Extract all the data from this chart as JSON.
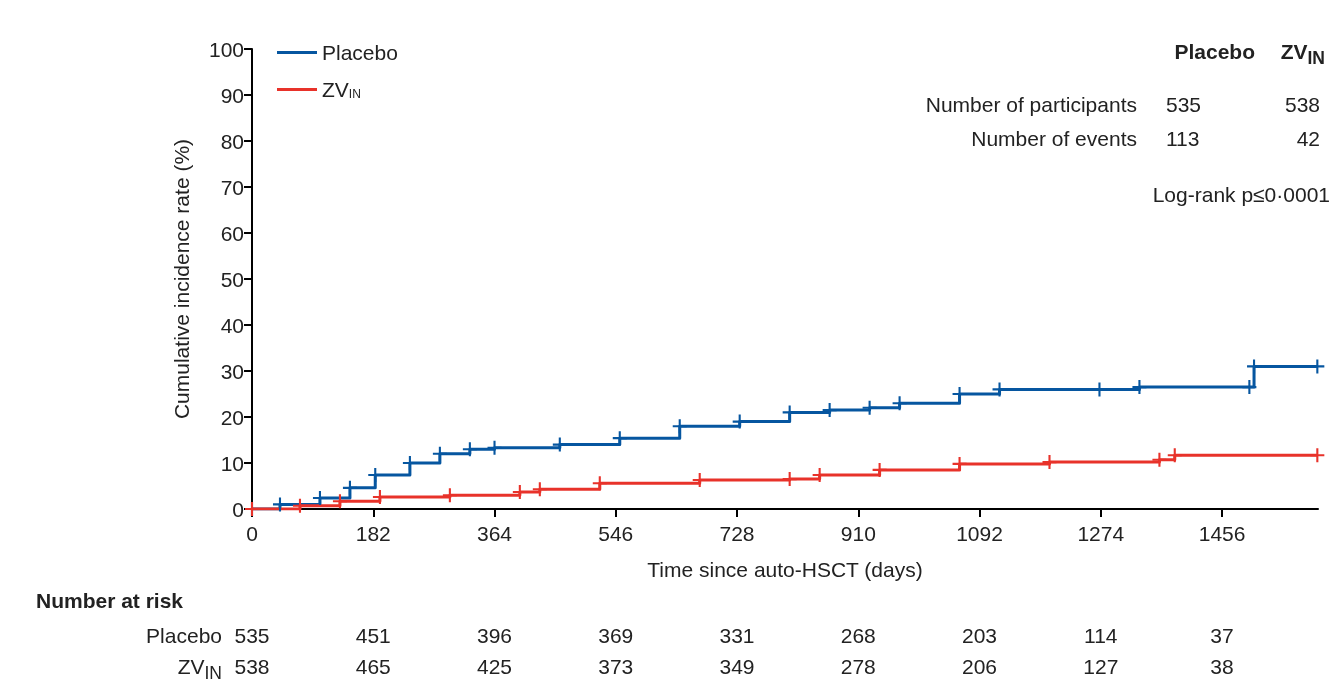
{
  "chart_data": {
    "type": "step",
    "xlabel": "Time since auto-HSCT (days)",
    "ylabel": "Cumulative incidence rate (%)",
    "xlim": [
      0,
      1600
    ],
    "xticks": [
      0,
      182,
      364,
      546,
      728,
      910,
      1092,
      1274,
      1456
    ],
    "ylim": [
      0,
      100
    ],
    "yticks": [
      0,
      10,
      20,
      30,
      40,
      50,
      60,
      70,
      80,
      90,
      100
    ],
    "grid": false,
    "legend": "top left",
    "marker": "cross",
    "line_style": "solid",
    "series": [
      {
        "name": "Placebo",
        "color": "#0656a0",
        "x": [
          0,
          42,
          102,
          147,
          185,
          237,
          282,
          327,
          364,
          462,
          552,
          642,
          732,
          807,
          867,
          927,
          972,
          1062,
          1122,
          1272,
          1332,
          1497,
          1504,
          1599
        ],
        "values": [
          0,
          1,
          2.4,
          4.6,
          7.4,
          10,
          12,
          13,
          13.3,
          14,
          15.4,
          18,
          19,
          21,
          21.5,
          22,
          23,
          25,
          26,
          26,
          26.5,
          26.5,
          31,
          31
        ]
      },
      {
        "name": "ZV$_{IN}$",
        "color": "#e8322a",
        "x": [
          0,
          72,
          132,
          192,
          297,
          402,
          432,
          522,
          672,
          807,
          852,
          942,
          1062,
          1197,
          1362,
          1385,
          1599
        ],
        "values": [
          0,
          0.7,
          1.7,
          2.6,
          3,
          3.7,
          4.3,
          5.6,
          6.3,
          6.5,
          7.4,
          8.5,
          9.8,
          10.2,
          10.7,
          11.7,
          11.7
        ]
      }
    ],
    "annotations": [
      "Placebo",
      "ZV$_{IN}$",
      "Number of participants",
      "535",
      "538",
      "Number of events",
      "113",
      "42",
      "Log-rank p≤0·0001",
      "Number at risk",
      "Placebo",
      "535",
      "451",
      "396",
      "369",
      "331",
      "268",
      "203",
      "114",
      "37",
      "ZV$_{IN}$",
      "538",
      "465",
      "425",
      "373",
      "349",
      "278",
      "206",
      "127",
      "38"
    ]
  }
}
